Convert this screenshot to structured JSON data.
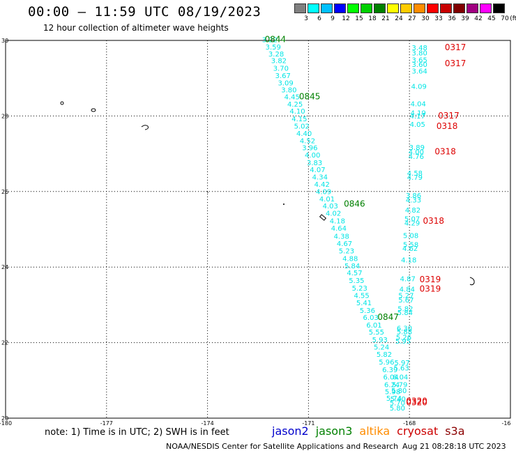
{
  "title": "00:00 – 11:59 UTC 08/19/2023",
  "subtitle": "12 hour collection of altimeter wave heights",
  "color_scale": {
    "unit": "(ft)",
    "colors": [
      "#808080",
      "#00ffff",
      "#00c0ff",
      "#0000ff",
      "#00ff00",
      "#00d000",
      "#008000",
      "#ffff00",
      "#ffcc00",
      "#ff8c00",
      "#ff0000",
      "#c80000",
      "#800000",
      "#a00080",
      "#ff00ff",
      "#000000"
    ],
    "labels": [
      "3",
      "6",
      "9",
      "12",
      "15",
      "18",
      "21",
      "24",
      "27",
      "30",
      "33",
      "36",
      "39",
      "42",
      "45",
      "70"
    ]
  },
  "map": {
    "lat_range": [
      20,
      30
    ],
    "lon_range": [
      -180,
      -165
    ],
    "lat_ticks": [
      "30",
      "28",
      "26",
      "24",
      "22",
      "20"
    ],
    "lon_ticks": [
      "-180",
      "-177",
      "-174",
      "-171",
      "-168",
      "-16"
    ],
    "track_a": [
      {
        "v": "3.22",
        "lon": -172.15,
        "lat": 29.95
      },
      {
        "v": "3.59",
        "lon": -172.05,
        "lat": 29.76
      },
      {
        "v": "3.28",
        "lon": -171.96,
        "lat": 29.58
      },
      {
        "v": "3.82",
        "lon": -171.88,
        "lat": 29.4
      },
      {
        "v": "3.70",
        "lon": -171.82,
        "lat": 29.2
      },
      {
        "v": "3.67",
        "lon": -171.76,
        "lat": 29.0
      },
      {
        "v": "3.09",
        "lon": -171.68,
        "lat": 28.81
      },
      {
        "v": "3.80",
        "lon": -171.58,
        "lat": 28.63
      },
      {
        "v": "4.45",
        "lon": -171.49,
        "lat": 28.44
      },
      {
        "v": "4.25",
        "lon": -171.4,
        "lat": 28.25
      },
      {
        "v": "4.10",
        "lon": -171.33,
        "lat": 28.06
      },
      {
        "v": "4.15",
        "lon": -171.27,
        "lat": 27.86
      },
      {
        "v": "5.02",
        "lon": -171.2,
        "lat": 27.67
      },
      {
        "v": "4.40",
        "lon": -171.13,
        "lat": 27.47
      },
      {
        "v": "4.52",
        "lon": -171.03,
        "lat": 27.28
      },
      {
        "v": "3.96",
        "lon": -170.96,
        "lat": 27.09
      },
      {
        "v": "4.00",
        "lon": -170.88,
        "lat": 26.9
      },
      {
        "v": "3.83",
        "lon": -170.82,
        "lat": 26.7
      },
      {
        "v": "4.07",
        "lon": -170.73,
        "lat": 26.51
      },
      {
        "v": "4.34",
        "lon": -170.66,
        "lat": 26.32
      },
      {
        "v": "4.42",
        "lon": -170.6,
        "lat": 26.13
      },
      {
        "v": "4.09",
        "lon": -170.55,
        "lat": 25.93
      },
      {
        "v": "4.01",
        "lon": -170.45,
        "lat": 25.74
      },
      {
        "v": "4.03",
        "lon": -170.35,
        "lat": 25.55
      },
      {
        "v": "4.02",
        "lon": -170.26,
        "lat": 25.36
      },
      {
        "v": "4.18",
        "lon": -170.14,
        "lat": 25.16
      },
      {
        "v": "4.64",
        "lon": -170.1,
        "lat": 24.96
      },
      {
        "v": "4.38",
        "lon": -170.02,
        "lat": 24.75
      },
      {
        "v": "4.67",
        "lon": -169.93,
        "lat": 24.56
      },
      {
        "v": "5.23",
        "lon": -169.87,
        "lat": 24.36
      },
      {
        "v": "4.88",
        "lon": -169.76,
        "lat": 24.16
      },
      {
        "v": "5.84",
        "lon": -169.7,
        "lat": 23.97
      },
      {
        "v": "4.57",
        "lon": -169.63,
        "lat": 23.78
      },
      {
        "v": "5.35",
        "lon": -169.57,
        "lat": 23.58
      },
      {
        "v": "5.23",
        "lon": -169.48,
        "lat": 23.38
      },
      {
        "v": "4.55",
        "lon": -169.42,
        "lat": 23.18
      },
      {
        "v": "5.41",
        "lon": -169.35,
        "lat": 22.99
      },
      {
        "v": "5.36",
        "lon": -169.25,
        "lat": 22.79
      },
      {
        "v": "6.03",
        "lon": -169.15,
        "lat": 22.6
      },
      {
        "v": "6.01",
        "lon": -169.05,
        "lat": 22.4
      },
      {
        "v": "5.55",
        "lon": -168.98,
        "lat": 22.21
      },
      {
        "v": "5.93",
        "lon": -168.88,
        "lat": 22.01
      },
      {
        "v": "5.24",
        "lon": -168.83,
        "lat": 21.82
      },
      {
        "v": "5.82",
        "lon": -168.75,
        "lat": 21.62
      },
      {
        "v": "5.96",
        "lon": -168.68,
        "lat": 21.42
      },
      {
        "v": "6.39",
        "lon": -168.58,
        "lat": 21.22
      },
      {
        "v": "6.04",
        "lon": -168.55,
        "lat": 21.02
      },
      {
        "v": "6.24",
        "lon": -168.52,
        "lat": 20.82
      },
      {
        "v": "5.98",
        "lon": -168.5,
        "lat": 20.64
      },
      {
        "v": "5.74",
        "lon": -168.46,
        "lat": 20.46
      }
    ],
    "track_b": [
      {
        "v": "3.48",
        "lon": -167.7,
        "lat": 29.74
      },
      {
        "v": "3.80",
        "lon": -167.7,
        "lat": 29.6
      },
      {
        "v": "3.65",
        "lon": -167.7,
        "lat": 29.42
      },
      {
        "v": "3.60",
        "lon": -167.7,
        "lat": 29.3
      },
      {
        "v": "3.64",
        "lon": -167.7,
        "lat": 29.12
      },
      {
        "v": "4.09",
        "lon": -167.72,
        "lat": 28.72
      },
      {
        "v": "4.04",
        "lon": -167.74,
        "lat": 28.26
      },
      {
        "v": "4.19",
        "lon": -167.74,
        "lat": 28.02
      },
      {
        "v": "4.17",
        "lon": -167.76,
        "lat": 27.93
      },
      {
        "v": "4.05",
        "lon": -167.76,
        "lat": 27.71
      },
      {
        "v": "3.89",
        "lon": -167.78,
        "lat": 27.1
      },
      {
        "v": "4.00",
        "lon": -167.8,
        "lat": 26.98
      },
      {
        "v": "4.76",
        "lon": -167.8,
        "lat": 26.86
      },
      {
        "v": "4.58",
        "lon": -167.84,
        "lat": 26.42
      },
      {
        "v": "4.79",
        "lon": -167.84,
        "lat": 26.31
      },
      {
        "v": "3.86",
        "lon": -167.88,
        "lat": 25.83
      },
      {
        "v": "4.33",
        "lon": -167.88,
        "lat": 25.71
      },
      {
        "v": "4.82",
        "lon": -167.9,
        "lat": 25.44
      },
      {
        "v": "5.07",
        "lon": -167.92,
        "lat": 25.21
      },
      {
        "v": "4.29",
        "lon": -167.92,
        "lat": 25.1
      },
      {
        "v": "5.08",
        "lon": -167.96,
        "lat": 24.77
      },
      {
        "v": "5.58",
        "lon": -167.96,
        "lat": 24.53
      },
      {
        "v": "4.62",
        "lon": -167.98,
        "lat": 24.43
      },
      {
        "v": "4.18",
        "lon": -168.02,
        "lat": 24.12
      },
      {
        "v": "4.87",
        "lon": -168.05,
        "lat": 23.63
      },
      {
        "v": "4.84",
        "lon": -168.07,
        "lat": 23.35
      },
      {
        "v": "5.27",
        "lon": -168.1,
        "lat": 23.18
      },
      {
        "v": "5.67",
        "lon": -168.1,
        "lat": 23.06
      },
      {
        "v": "5.82",
        "lon": -168.12,
        "lat": 22.83
      },
      {
        "v": "5.84",
        "lon": -168.13,
        "lat": 22.73
      },
      {
        "v": "6.30",
        "lon": -168.15,
        "lat": 22.32
      },
      {
        "v": "5.88",
        "lon": -168.15,
        "lat": 22.22
      },
      {
        "v": "5.26",
        "lon": -168.17,
        "lat": 22.08
      },
      {
        "v": "5.95",
        "lon": -168.19,
        "lat": 21.97
      },
      {
        "v": "5.97",
        "lon": -168.22,
        "lat": 21.4
      },
      {
        "v": "5.63",
        "lon": -168.24,
        "lat": 21.26
      },
      {
        "v": "6.04",
        "lon": -168.27,
        "lat": 21.02
      },
      {
        "v": "5.79",
        "lon": -168.29,
        "lat": 20.82
      },
      {
        "v": "5.80",
        "lon": -168.31,
        "lat": 20.66
      },
      {
        "v": "5.40",
        "lon": -168.34,
        "lat": 20.44
      },
      {
        "v": "5.70",
        "lon": -168.36,
        "lat": 20.34
      },
      {
        "v": "5.80",
        "lon": -168.36,
        "lat": 20.2
      }
    ],
    "times_green": [
      {
        "t": "0844",
        "lon": -172.3,
        "lat": 29.95
      },
      {
        "t": "0845",
        "lon": -171.28,
        "lat": 28.44
      },
      {
        "t": "0846",
        "lon": -169.95,
        "lat": 25.6
      },
      {
        "t": "0847",
        "lon": -168.95,
        "lat": 22.6
      }
    ],
    "times_red": [
      {
        "t": "0317",
        "lon": -166.95,
        "lat": 29.74
      },
      {
        "t": "0317",
        "lon": -166.95,
        "lat": 29.32
      },
      {
        "t": "0317",
        "lon": -167.15,
        "lat": 27.93
      },
      {
        "t": "0318",
        "lon": -167.2,
        "lat": 27.66
      },
      {
        "t": "0318",
        "lon": -167.25,
        "lat": 26.98
      },
      {
        "t": "0318",
        "lon": -167.6,
        "lat": 25.15
      },
      {
        "t": "0319",
        "lon": -167.7,
        "lat": 23.6
      },
      {
        "t": "0319",
        "lon": -167.7,
        "lat": 23.35
      },
      {
        "t": "0320",
        "lon": -168.1,
        "lat": 20.38
      },
      {
        "t": "0320",
        "lon": -168.1,
        "lat": 20.34
      }
    ]
  },
  "note": "note:  1) Time is in UTC;  2) SWH is in feet",
  "legend": [
    {
      "name": "jason2",
      "color": "#0000cc"
    },
    {
      "name": "jason3",
      "color": "#008000"
    },
    {
      "name": "altika",
      "color": "#ff8c00"
    },
    {
      "name": "cryosat",
      "color": "#cc0000"
    },
    {
      "name": "s3a",
      "color": "#8b0000"
    }
  ],
  "credit": "NOAA/NESDIS Center for Satellite Applications and Research",
  "stamp": "Aug 21 08:28:18 UTC 2023"
}
